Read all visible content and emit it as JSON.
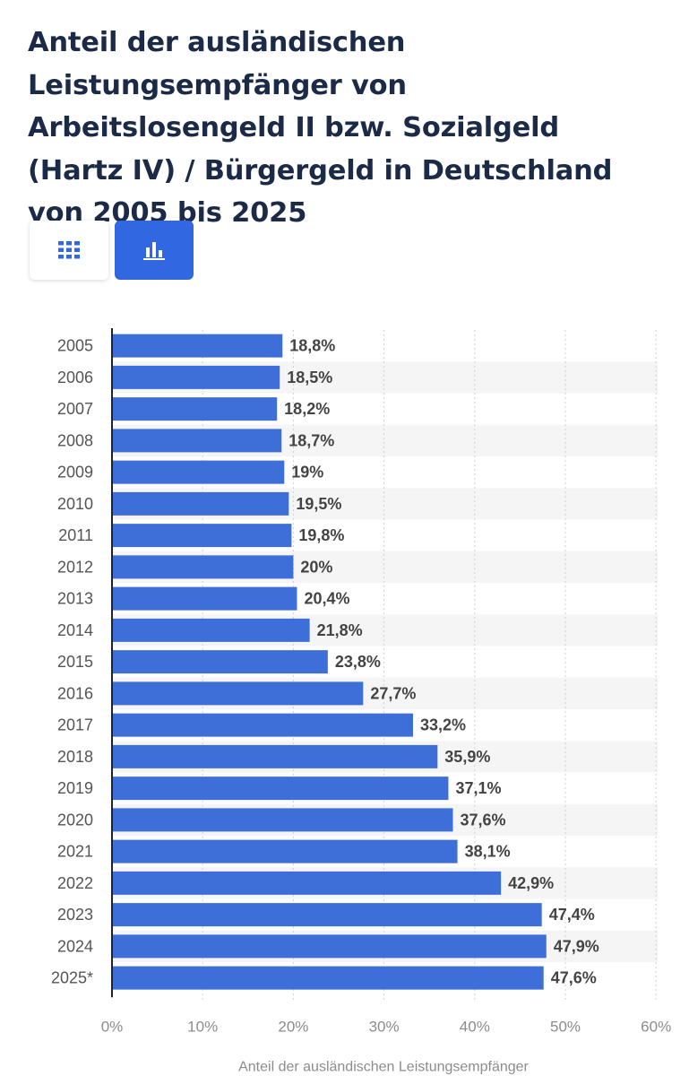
{
  "title": "Anteil der ausländischen Leistungsempfänger von Arbeitslosengeld II bzw. Sozialgeld (Hartz IV) / Bürgergeld in Deutschland von 2005 bis 2025",
  "controls": {
    "table_icon": "grid-icon",
    "chart_icon": "bar-chart-icon",
    "active": "chart"
  },
  "colors": {
    "bar": "#3e6fd8",
    "title": "#1b2a47",
    "button_active": "#3167e0",
    "label": "#444444",
    "axis": "#8c8c8c"
  },
  "chart_data": {
    "type": "bar",
    "orientation": "horizontal",
    "categories": [
      "2005",
      "2006",
      "2007",
      "2008",
      "2009",
      "2010",
      "2011",
      "2012",
      "2013",
      "2014",
      "2015",
      "2016",
      "2017",
      "2018",
      "2019",
      "2020",
      "2021",
      "2022",
      "2023",
      "2024",
      "2025*"
    ],
    "values": [
      18.8,
      18.5,
      18.2,
      18.7,
      19,
      19.5,
      19.8,
      20,
      20.4,
      21.8,
      23.8,
      27.7,
      33.2,
      35.9,
      37.1,
      37.6,
      38.1,
      42.9,
      47.4,
      47.9,
      47.6
    ],
    "value_labels": [
      "18,8%",
      "18,5%",
      "18,2%",
      "18,7%",
      "19%",
      "19,5%",
      "19,8%",
      "20%",
      "20,4%",
      "21,8%",
      "23,8%",
      "27,7%",
      "33,2%",
      "35,9%",
      "37,1%",
      "37,6%",
      "38,1%",
      "42,9%",
      "47,4%",
      "47,9%",
      "47,6%"
    ],
    "xlabel": "Anteil der ausländischen Leistungsempfänger",
    "xlim": [
      0,
      60
    ],
    "xticks": [
      "0%",
      "10%",
      "20%",
      "30%",
      "40%",
      "50%",
      "60%"
    ],
    "grid": true
  }
}
